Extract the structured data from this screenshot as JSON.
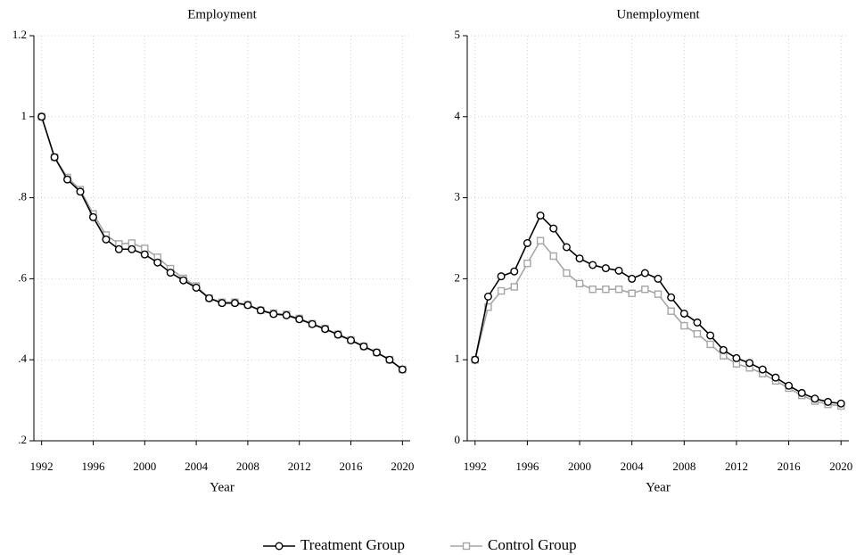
{
  "chart_data": [
    {
      "type": "line",
      "title": "Employment",
      "xlabel": "Year",
      "x": [
        1992,
        1993,
        1994,
        1995,
        1996,
        1997,
        1998,
        1999,
        2000,
        2001,
        2002,
        2003,
        2004,
        2005,
        2006,
        2007,
        2008,
        2009,
        2010,
        2011,
        2012,
        2013,
        2014,
        2015,
        2016,
        2017,
        2018,
        2019,
        2020
      ],
      "series": [
        {
          "name": "Treatment Group",
          "color": "#000000",
          "marker": "circle",
          "values": [
            1.0,
            0.9,
            0.845,
            0.815,
            0.752,
            0.697,
            0.673,
            0.673,
            0.66,
            0.64,
            0.615,
            0.596,
            0.578,
            0.552,
            0.54,
            0.54,
            0.535,
            0.522,
            0.513,
            0.51,
            0.5,
            0.488,
            0.476,
            0.462,
            0.448,
            0.433,
            0.418,
            0.4,
            0.376
          ]
        },
        {
          "name": "Control Group",
          "color": "#a6a6a6",
          "marker": "square",
          "values": [
            1.0,
            0.9,
            0.85,
            0.82,
            0.76,
            0.708,
            0.686,
            0.688,
            0.675,
            0.653,
            0.625,
            0.601,
            0.582,
            0.552,
            0.542,
            0.542,
            0.536,
            0.522,
            0.515,
            0.512,
            0.502,
            0.489,
            0.477,
            0.463,
            0.449,
            0.433,
            0.418,
            0.4,
            0.376
          ]
        }
      ],
      "xlim": [
        1991.4,
        2020.6
      ],
      "xticks": [
        1992,
        1996,
        2000,
        2004,
        2008,
        2012,
        2016,
        2020
      ],
      "ylim": [
        0.2,
        1.2
      ],
      "yticks": [
        {
          "value": 0.2,
          "label": ".2"
        },
        {
          "value": 0.4,
          "label": ".4"
        },
        {
          "value": 0.6,
          "label": ".6"
        },
        {
          "value": 0.8,
          "label": ".8"
        },
        1,
        1.2
      ],
      "grid": true
    },
    {
      "type": "line",
      "title": "Unemployment",
      "xlabel": "Year",
      "x": [
        1992,
        1993,
        1994,
        1995,
        1996,
        1997,
        1998,
        1999,
        2000,
        2001,
        2002,
        2003,
        2004,
        2005,
        2006,
        2007,
        2008,
        2009,
        2010,
        2011,
        2012,
        2013,
        2014,
        2015,
        2016,
        2017,
        2018,
        2019,
        2020
      ],
      "series": [
        {
          "color": "#000000",
          "marker": "circle",
          "values": [
            1.0,
            1.78,
            2.03,
            2.09,
            2.44,
            2.78,
            2.62,
            2.39,
            2.25,
            2.17,
            2.13,
            2.1,
            2.0,
            2.07,
            2.0,
            1.77,
            1.57,
            1.46,
            1.3,
            1.12,
            1.02,
            0.96,
            0.88,
            0.78,
            0.68,
            0.59,
            0.52,
            0.48,
            0.46
          ]
        },
        {
          "color": "#a6a6a6",
          "marker": "square",
          "values": [
            1.0,
            1.65,
            1.85,
            1.9,
            2.19,
            2.47,
            2.28,
            2.07,
            1.94,
            1.87,
            1.87,
            1.87,
            1.82,
            1.87,
            1.81,
            1.6,
            1.42,
            1.32,
            1.19,
            1.05,
            0.95,
            0.9,
            0.83,
            0.74,
            0.65,
            0.56,
            0.49,
            0.45,
            0.43
          ]
        }
      ],
      "xlim": [
        1991.4,
        2020.6
      ],
      "xticks": [
        1992,
        1996,
        2000,
        2004,
        2008,
        2012,
        2016,
        2020
      ],
      "ylim": [
        0,
        5
      ],
      "yticks": [
        0,
        1,
        2,
        3,
        4,
        5
      ],
      "grid": true
    }
  ]
}
